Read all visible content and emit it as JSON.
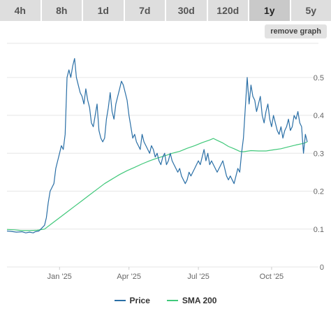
{
  "tabs": [
    {
      "label": "4h",
      "active": false
    },
    {
      "label": "8h",
      "active": false
    },
    {
      "label": "1d",
      "active": false
    },
    {
      "label": "7d",
      "active": false
    },
    {
      "label": "30d",
      "active": false
    },
    {
      "label": "120d",
      "active": false
    },
    {
      "label": "1y",
      "active": true
    },
    {
      "label": "5y",
      "active": false
    }
  ],
  "remove_graph_label": "remove graph",
  "colors": {
    "price": "#2a6fa6",
    "sma": "#40c87a",
    "grid": "#e6e6e6",
    "axis_text": "#666666"
  },
  "chart_data": {
    "type": "line",
    "title": "",
    "xlabel": "",
    "ylabel": "",
    "x_ticks": [
      "Jan '25",
      "Apr '25",
      "Jul '25",
      "Oct '25"
    ],
    "y_ticks": [
      0,
      0.1,
      0.2,
      0.3,
      0.4,
      0.5
    ],
    "ylim": [
      0,
      0.59
    ],
    "legend_position": "bottom",
    "series": [
      {
        "name": "Price",
        "points": [
          [
            0,
            0.095
          ],
          [
            2,
            0.094
          ],
          [
            5,
            0.092
          ],
          [
            8,
            0.093
          ],
          [
            10,
            0.09
          ],
          [
            12,
            0.092
          ],
          [
            14,
            0.09
          ],
          [
            15,
            0.093
          ],
          [
            17,
            0.095
          ],
          [
            18,
            0.1
          ],
          [
            20,
            0.11
          ],
          [
            21,
            0.13
          ],
          [
            22,
            0.17
          ],
          [
            23,
            0.2
          ],
          [
            24,
            0.21
          ],
          [
            25,
            0.22
          ],
          [
            26,
            0.26
          ],
          [
            27,
            0.28
          ],
          [
            28,
            0.3
          ],
          [
            29,
            0.32
          ],
          [
            30,
            0.31
          ],
          [
            31,
            0.35
          ],
          [
            32,
            0.5
          ],
          [
            33,
            0.52
          ],
          [
            34,
            0.5
          ],
          [
            35,
            0.53
          ],
          [
            36,
            0.55
          ],
          [
            37,
            0.5
          ],
          [
            38,
            0.48
          ],
          [
            39,
            0.46
          ],
          [
            40,
            0.45
          ],
          [
            41,
            0.43
          ],
          [
            42,
            0.47
          ],
          [
            43,
            0.44
          ],
          [
            44,
            0.42
          ],
          [
            45,
            0.38
          ],
          [
            46,
            0.37
          ],
          [
            47,
            0.4
          ],
          [
            48,
            0.43
          ],
          [
            49,
            0.36
          ],
          [
            50,
            0.34
          ],
          [
            51,
            0.33
          ],
          [
            52,
            0.34
          ],
          [
            53,
            0.39
          ],
          [
            54,
            0.42
          ],
          [
            55,
            0.46
          ],
          [
            56,
            0.41
          ],
          [
            57,
            0.39
          ],
          [
            58,
            0.43
          ],
          [
            59,
            0.45
          ],
          [
            60,
            0.47
          ],
          [
            61,
            0.49
          ],
          [
            62,
            0.48
          ],
          [
            63,
            0.46
          ],
          [
            64,
            0.44
          ],
          [
            65,
            0.4
          ],
          [
            66,
            0.37
          ],
          [
            67,
            0.34
          ],
          [
            68,
            0.35
          ],
          [
            69,
            0.33
          ],
          [
            70,
            0.32
          ],
          [
            71,
            0.31
          ],
          [
            72,
            0.35
          ],
          [
            73,
            0.33
          ],
          [
            74,
            0.32
          ],
          [
            75,
            0.31
          ],
          [
            76,
            0.3
          ],
          [
            77,
            0.32
          ],
          [
            78,
            0.31
          ],
          [
            79,
            0.29
          ],
          [
            80,
            0.3
          ],
          [
            81,
            0.28
          ],
          [
            82,
            0.27
          ],
          [
            83,
            0.29
          ],
          [
            84,
            0.3
          ],
          [
            85,
            0.27
          ],
          [
            86,
            0.28
          ],
          [
            87,
            0.3
          ],
          [
            88,
            0.28
          ],
          [
            89,
            0.27
          ],
          [
            90,
            0.26
          ],
          [
            91,
            0.25
          ],
          [
            92,
            0.26
          ],
          [
            93,
            0.24
          ],
          [
            94,
            0.23
          ],
          [
            95,
            0.22
          ],
          [
            96,
            0.23
          ],
          [
            97,
            0.25
          ],
          [
            98,
            0.24
          ],
          [
            99,
            0.25
          ],
          [
            100,
            0.26
          ],
          [
            101,
            0.27
          ],
          [
            102,
            0.28
          ],
          [
            103,
            0.27
          ],
          [
            104,
            0.29
          ],
          [
            105,
            0.31
          ],
          [
            106,
            0.28
          ],
          [
            107,
            0.3
          ],
          [
            108,
            0.27
          ],
          [
            109,
            0.28
          ],
          [
            110,
            0.27
          ],
          [
            111,
            0.26
          ],
          [
            112,
            0.25
          ],
          [
            113,
            0.26
          ],
          [
            114,
            0.27
          ],
          [
            115,
            0.28
          ],
          [
            116,
            0.26
          ],
          [
            117,
            0.24
          ],
          [
            118,
            0.23
          ],
          [
            119,
            0.24
          ],
          [
            120,
            0.23
          ],
          [
            121,
            0.22
          ],
          [
            122,
            0.24
          ],
          [
            123,
            0.26
          ],
          [
            124,
            0.25
          ],
          [
            125,
            0.3
          ],
          [
            126,
            0.34
          ],
          [
            127,
            0.42
          ],
          [
            128,
            0.5
          ],
          [
            129,
            0.43
          ],
          [
            130,
            0.48
          ],
          [
            131,
            0.45
          ],
          [
            132,
            0.44
          ],
          [
            133,
            0.41
          ],
          [
            134,
            0.43
          ],
          [
            135,
            0.45
          ],
          [
            136,
            0.4
          ],
          [
            137,
            0.38
          ],
          [
            138,
            0.41
          ],
          [
            139,
            0.43
          ],
          [
            140,
            0.39
          ],
          [
            141,
            0.37
          ],
          [
            142,
            0.4
          ],
          [
            143,
            0.38
          ],
          [
            144,
            0.36
          ],
          [
            145,
            0.35
          ],
          [
            146,
            0.37
          ],
          [
            147,
            0.34
          ],
          [
            148,
            0.36
          ],
          [
            149,
            0.37
          ],
          [
            150,
            0.39
          ],
          [
            151,
            0.36
          ],
          [
            152,
            0.37
          ],
          [
            153,
            0.4
          ],
          [
            154,
            0.39
          ],
          [
            155,
            0.41
          ],
          [
            156,
            0.38
          ],
          [
            157,
            0.37
          ],
          [
            158,
            0.3
          ],
          [
            159,
            0.35
          ],
          [
            160,
            0.33
          ]
        ]
      },
      {
        "name": "SMA 200",
        "points": [
          [
            0,
            0.099
          ],
          [
            4,
            0.098
          ],
          [
            8,
            0.096
          ],
          [
            12,
            0.096
          ],
          [
            16,
            0.097
          ],
          [
            20,
            0.1
          ],
          [
            24,
            0.115
          ],
          [
            28,
            0.13
          ],
          [
            32,
            0.145
          ],
          [
            36,
            0.16
          ],
          [
            40,
            0.175
          ],
          [
            44,
            0.19
          ],
          [
            48,
            0.205
          ],
          [
            52,
            0.22
          ],
          [
            56,
            0.232
          ],
          [
            60,
            0.244
          ],
          [
            64,
            0.254
          ],
          [
            68,
            0.263
          ],
          [
            72,
            0.272
          ],
          [
            76,
            0.28
          ],
          [
            80,
            0.287
          ],
          [
            84,
            0.293
          ],
          [
            88,
            0.3
          ],
          [
            92,
            0.305
          ],
          [
            96,
            0.313
          ],
          [
            100,
            0.32
          ],
          [
            104,
            0.328
          ],
          [
            108,
            0.335
          ],
          [
            110,
            0.339
          ],
          [
            112,
            0.334
          ],
          [
            115,
            0.327
          ],
          [
            118,
            0.318
          ],
          [
            121,
            0.312
          ],
          [
            124,
            0.305
          ],
          [
            126,
            0.304
          ],
          [
            130,
            0.307
          ],
          [
            134,
            0.306
          ],
          [
            138,
            0.306
          ],
          [
            142,
            0.309
          ],
          [
            146,
            0.312
          ],
          [
            150,
            0.317
          ],
          [
            154,
            0.322
          ],
          [
            158,
            0.326
          ],
          [
            160,
            0.33
          ]
        ]
      }
    ]
  }
}
